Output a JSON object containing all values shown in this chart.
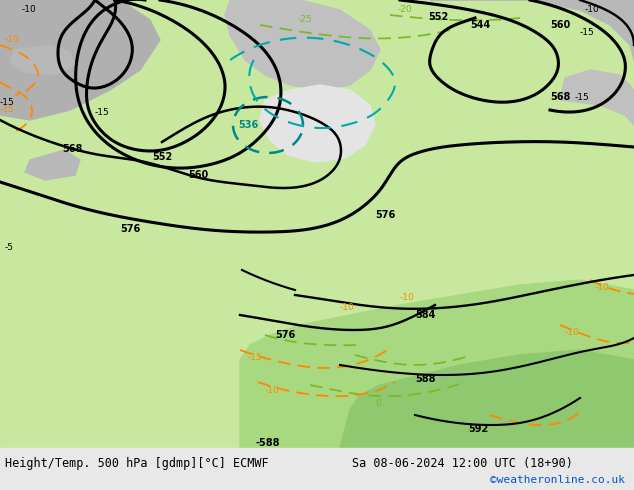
{
  "title_left": "Height/Temp. 500 hPa [gdmp][°C] ECMWF",
  "title_right": "Sa 08-06-2024 12:00 UTC (18+90)",
  "watermark": "©weatheronline.co.uk",
  "bg_light_green": "#c8e8a0",
  "bg_med_green": "#a8d878",
  "bg_gray": "#b4b4b4",
  "bg_white_low": "#e8e8e8",
  "bottom_bar": "#e8e8e8",
  "title_fontsize": 8.5,
  "watermark_fontsize": 8,
  "label_fontsize": 7
}
